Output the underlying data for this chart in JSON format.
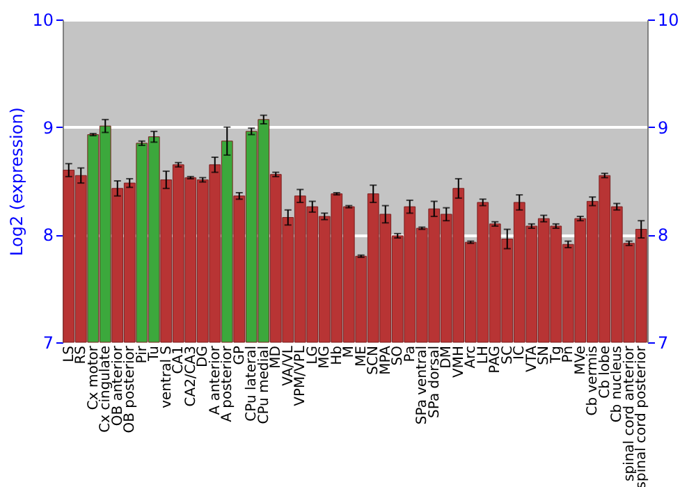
{
  "chart_data": {
    "type": "bar",
    "ylabel": "Log2 (expression)",
    "categories": [
      "LS",
      "RS",
      "Cx motor",
      "Cx cingulate",
      "OB anterior",
      "OB posterior",
      "Pir",
      "Tu",
      "ventral S",
      "CA1",
      "CA2/CA3",
      "DG",
      "A anterior",
      "A posterior",
      "GP",
      "CPu lateral",
      "CPu medial",
      "MD",
      "VA/VL",
      "VPM/VPL",
      "LG",
      "MG",
      "Hb",
      "M",
      "ME",
      "SCN",
      "MPA",
      "SO",
      "Pa",
      "SPa ventral",
      "SPa dorsal",
      "DM",
      "VMH",
      "Arc",
      "LH",
      "PAG",
      "SC",
      "IC",
      "VTA",
      "SN",
      "Tg",
      "Pn",
      "MVe",
      "Cb vermis",
      "Cb lobe",
      "Cb nucleus",
      "spinal cord anterior",
      "spinal cord posterior"
    ],
    "values": [
      8.6,
      8.55,
      8.93,
      9.01,
      8.43,
      8.48,
      8.85,
      8.91,
      8.51,
      8.65,
      8.53,
      8.51,
      8.65,
      8.87,
      8.36,
      8.96,
      9.07,
      8.56,
      8.16,
      8.36,
      8.26,
      8.17,
      8.38,
      8.26,
      7.8,
      8.38,
      8.19,
      7.99,
      8.26,
      8.06,
      8.24,
      8.19,
      8.43,
      7.93,
      8.3,
      8.1,
      7.96,
      8.3,
      8.08,
      8.15,
      8.08,
      7.91,
      8.15,
      8.31,
      8.55,
      8.26,
      7.92,
      8.05
    ],
    "errors": [
      0.06,
      0.07,
      0.01,
      0.06,
      0.07,
      0.04,
      0.02,
      0.05,
      0.08,
      0.02,
      0.01,
      0.02,
      0.07,
      0.13,
      0.03,
      0.03,
      0.04,
      0.02,
      0.07,
      0.06,
      0.05,
      0.03,
      0.01,
      0.01,
      0.01,
      0.08,
      0.08,
      0.02,
      0.06,
      0.01,
      0.07,
      0.06,
      0.09,
      0.01,
      0.03,
      0.02,
      0.09,
      0.07,
      0.02,
      0.03,
      0.02,
      0.03,
      0.02,
      0.04,
      0.02,
      0.03,
      0.02,
      0.08
    ],
    "colors": [
      "#b83434",
      "#b83434",
      "#3ca83c",
      "#3ca83c",
      "#b83434",
      "#b83434",
      "#3ca83c",
      "#3ca83c",
      "#b83434",
      "#b83434",
      "#b83434",
      "#b83434",
      "#b83434",
      "#3ca83c",
      "#b83434",
      "#3ca83c",
      "#3ca83c",
      "#b83434",
      "#b83434",
      "#b83434",
      "#b83434",
      "#b83434",
      "#b83434",
      "#b83434",
      "#b83434",
      "#b83434",
      "#b83434",
      "#b83434",
      "#b83434",
      "#b83434",
      "#b83434",
      "#b83434",
      "#b83434",
      "#b83434",
      "#b83434",
      "#b83434",
      "#b83434",
      "#b83434",
      "#b83434",
      "#b83434",
      "#b83434",
      "#b83434",
      "#b83434",
      "#b83434",
      "#b83434",
      "#b83434",
      "#b83434",
      "#b83434"
    ],
    "ylim": [
      7,
      10
    ],
    "yticks": [
      7,
      8,
      9,
      10
    ],
    "y2lim": [
      7,
      10
    ],
    "y2ticks": [
      7,
      8,
      9,
      10
    ],
    "grid": "y"
  }
}
